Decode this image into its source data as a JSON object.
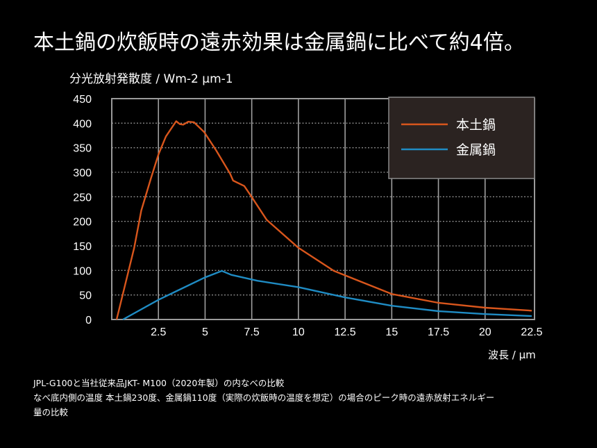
{
  "title": "本土鍋の炊飯時の遠赤効果は金属鍋に比べて約4倍。",
  "notes": [
    "JPL-G100と当社従来品JKT- M100（2020年製）の内なべの比較",
    "なべ底内側の温度 本土鍋230度、金属鍋110度（実際の炊飯時の温度を想定）の場合のピーク時の遠赤放射エネルギー",
    "量の比較"
  ],
  "chart_data": {
    "type": "line",
    "title": "",
    "ylabel": "分光放射発散度 / Wm-2 μm-1",
    "xlabel": "波長 / μm",
    "xlim": [
      0,
      22.5
    ],
    "ylim": [
      0,
      450
    ],
    "xticks": [
      "2.5",
      "5",
      "7.5",
      "10",
      "12.5",
      "15",
      "17.5",
      "20",
      "22.5"
    ],
    "xtick_values": [
      2.5,
      5,
      7.5,
      10,
      12.5,
      15,
      17.5,
      20,
      22.5
    ],
    "yticks": [
      "0",
      "50",
      "100",
      "150",
      "200",
      "250",
      "300",
      "350",
      "400",
      "450"
    ],
    "ytick_values": [
      0,
      50,
      100,
      150,
      200,
      250,
      300,
      350,
      400,
      450
    ],
    "grid": true,
    "legend_position": "top-right",
    "series": [
      {
        "name": "本土鍋",
        "color": "#d9561c",
        "x": [
          0.26,
          1.2,
          1.58,
          2.1,
          2.5,
          2.9,
          3.45,
          3.65,
          3.83,
          4.1,
          4.4,
          4.95,
          5.6,
          6.34,
          6.5,
          7.1,
          7.47,
          8.3,
          10,
          11.9,
          15,
          17.5,
          20,
          22.5
        ],
        "y": [
          0,
          146,
          222,
          288,
          336,
          373,
          404,
          398,
          397,
          403,
          402,
          382,
          344,
          297,
          283,
          272,
          251,
          203,
          146,
          99,
          52,
          34,
          24,
          18
        ]
      },
      {
        "name": "金属鍋",
        "color": "#1f8cc4",
        "x": [
          0.6,
          2.5,
          4.95,
          5.9,
          6.4,
          7.8,
          10,
          12.5,
          15,
          17.5,
          20,
          22.5
        ],
        "y": [
          0,
          40,
          85,
          99,
          91,
          79,
          66,
          45,
          28,
          17,
          11,
          7
        ]
      }
    ]
  }
}
